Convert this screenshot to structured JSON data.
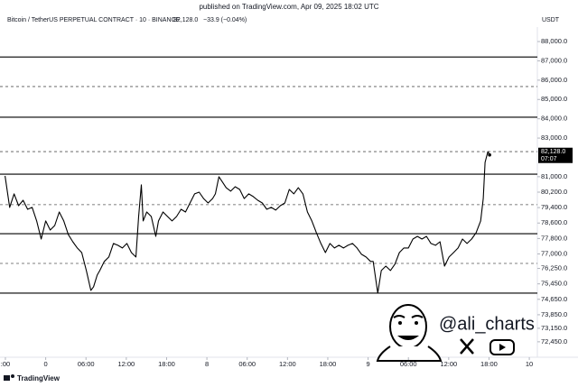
{
  "chart_data": {
    "type": "line",
    "published": "published on TradingView.com, Apr 09, 2025 18:02 UTC",
    "title": "Bitcoin / TetherUS PERPETUAL CONTRACT · 10 · BINANCE",
    "quote_last": "82,128.0",
    "quote_change": "−33.9 (−0.04%)",
    "currency": "USDT",
    "color": "#000000",
    "x": [
      -6.05,
      -5.37,
      -4.7,
      -4.03,
      -3.36,
      -2.69,
      -2.02,
      -1.34,
      -0.67,
      0,
      0.67,
      1.34,
      2.02,
      2.69,
      3.36,
      4.03,
      4.7,
      5.37,
      6.05,
      6.72,
      7.12,
      7.66,
      8.06,
      8.73,
      9.4,
      10.08,
      10.75,
      11.42,
      12.09,
      12.76,
      13.43,
      13.84,
      14.24,
      14.51,
      15.05,
      15.72,
      16.39,
      16.79,
      17.46,
      18.14,
      18.81,
      19.48,
      20.15,
      20.82,
      21.49,
      22.17,
      22.84,
      23.51,
      24.18,
      24.85,
      25.26,
      25.79,
      26.33,
      26.87,
      27.54,
      28.21,
      28.88,
      29.55,
      30.23,
      30.9,
      31.57,
      32.24,
      32.91,
      33.58,
      34.25,
      34.93,
      35.6,
      36.27,
      36.94,
      37.61,
      38.29,
      38.96,
      39.63,
      40.3,
      40.97,
      41.64,
      42.32,
      42.99,
      43.66,
      44.33,
      45.0,
      45.67,
      46.35,
      47.02,
      47.69,
      48.36,
      48.76,
      49.44,
      49.97,
      50.64,
      51.32,
      51.99,
      52.66,
      53.33,
      54.0,
      54.67,
      55.35,
      56.02,
      56.69,
      57.36,
      58.03,
      58.7,
      59.38,
      60.05,
      60.72,
      61.39,
      62.06,
      62.73,
      63.41,
      64.08,
      64.75,
      65.15,
      65.42,
      65.83,
      66.09
    ],
    "values": [
      81040,
      79410,
      80110,
      79500,
      79780,
      79310,
      79410,
      78710,
      77770,
      78710,
      78240,
      78470,
      79170,
      78710,
      78010,
      77630,
      77310,
      77070,
      76140,
      75110,
      75300,
      75900,
      76140,
      76610,
      76840,
      77540,
      77450,
      77310,
      77540,
      77070,
      76840,
      78940,
      80580,
      78710,
      79170,
      78940,
      77910,
      78710,
      79170,
      78940,
      78710,
      78940,
      79310,
      79170,
      79640,
      80110,
      80200,
      79870,
      79640,
      79870,
      80110,
      81000,
      80720,
      80430,
      80250,
      80480,
      80340,
      79870,
      80110,
      79970,
      79780,
      79640,
      79310,
      79410,
      79270,
      79500,
      79640,
      80340,
      80110,
      80430,
      80110,
      79170,
      78710,
      78100,
      77540,
      77070,
      77540,
      77310,
      77450,
      77310,
      77450,
      77540,
      77310,
      76980,
      76840,
      76610,
      76610,
      74970,
      76140,
      76370,
      76140,
      76470,
      77070,
      77310,
      77310,
      77770,
      77910,
      77770,
      77910,
      77540,
      77450,
      77630,
      76370,
      76840,
      77070,
      77310,
      77770,
      77540,
      77770,
      78100,
      78710,
      79870,
      81740,
      82300,
      82128
    ],
    "last_price_label": "82,128.0",
    "countdown": "07:07",
    "levels": [
      {
        "value": 87200,
        "style": "solid"
      },
      {
        "value": 85670,
        "style": "dashed"
      },
      {
        "value": 84080,
        "style": "solid"
      },
      {
        "value": 82300,
        "style": "dashed"
      },
      {
        "value": 81130,
        "style": "solid"
      },
      {
        "value": 79550,
        "style": "dashed"
      },
      {
        "value": 78050,
        "style": "solid"
      },
      {
        "value": 76510,
        "style": "dashed"
      },
      {
        "value": 74970,
        "style": "solid"
      }
    ],
    "xlim": [
      -6.4,
      73.2
    ],
    "ylim": [
      71650,
      88750
    ],
    "xticks": [
      {
        "value": -6,
        "label": ":00"
      },
      0,
      {
        "value": 6,
        "label": "06:00"
      },
      {
        "value": 12,
        "label": "12:00"
      },
      {
        "value": 18,
        "label": "18:00"
      },
      {
        "value": 24,
        "label": "8"
      },
      {
        "value": 30,
        "label": "06:00"
      },
      {
        "value": 36,
        "label": "12:00"
      },
      {
        "value": 42,
        "label": "18:00"
      },
      {
        "value": 48,
        "label": "9"
      },
      {
        "value": 54,
        "label": "06:00"
      },
      {
        "value": 60,
        "label": "12:00"
      },
      {
        "value": 66,
        "label": "18:00"
      },
      {
        "value": 72,
        "label": "10"
      }
    ],
    "xtick_day_start": 7,
    "yticks": [
      {
        "value": 88000,
        "label": "88,000.0"
      },
      {
        "value": 87000,
        "label": "87,000.0"
      },
      {
        "value": 86000,
        "label": "86,000.0"
      },
      {
        "value": 85000,
        "label": "85,000.0"
      },
      {
        "value": 84000,
        "label": "84,000.0"
      },
      {
        "value": 83000,
        "label": "83,000.0"
      },
      {
        "value": 81000,
        "label": "81,000.0"
      },
      {
        "value": 80200,
        "label": "80,200.0"
      },
      {
        "value": 79400,
        "label": "79,400.0"
      },
      {
        "value": 78600,
        "label": "78,600.0"
      },
      {
        "value": 77800,
        "label": "77,800.0"
      },
      {
        "value": 77000,
        "label": "77,000.0"
      },
      {
        "value": 76250,
        "label": "76,250.0"
      },
      {
        "value": 75450,
        "label": "75,450.0"
      },
      {
        "value": 74650,
        "label": "74,650.0"
      },
      {
        "value": 73850,
        "label": "73,850.0"
      },
      {
        "value": 73150,
        "label": "73,150.0"
      },
      {
        "value": 72450,
        "label": "72,450.0"
      }
    ],
    "watermark": "@ali_charts",
    "brand": "TradingView"
  }
}
